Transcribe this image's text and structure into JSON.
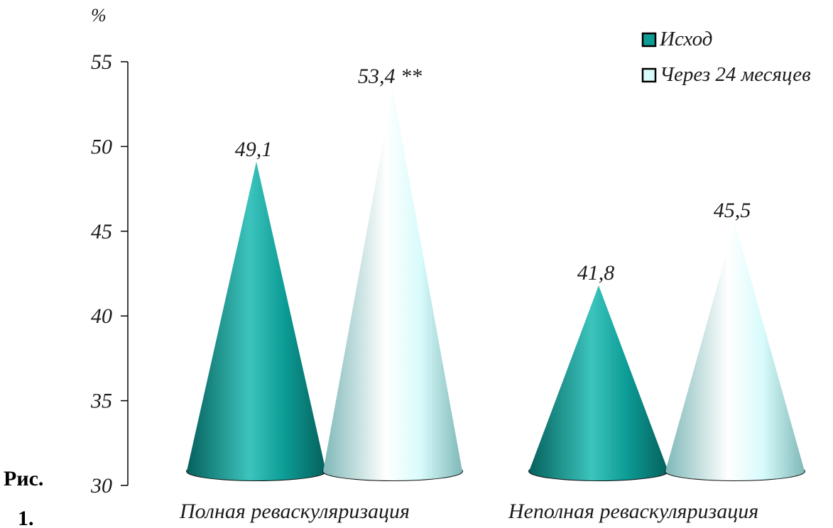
{
  "caption": {
    "line1": "Рис.",
    "line2": "1."
  },
  "colors": {
    "series_0": "#0d9c96",
    "series_0_dark": "#05605c",
    "series_0_light": "#3cc4bd",
    "series_1": "#d8fbfb",
    "series_1_dark": "#7fb8b8",
    "series_1_light": "#ffffff",
    "axis": "#000000"
  },
  "chart_data": {
    "type": "bar",
    "bar_shape": "cone",
    "unit_label": "%",
    "categories": [
      "Полная реваскуляризация",
      "Неполная реваскуляризация"
    ],
    "series": [
      {
        "name": "Исход",
        "values": [
          49.1,
          41.8
        ],
        "labels": [
          "49,1",
          "41,8"
        ]
      },
      {
        "name": "Через 24 месяцев",
        "values": [
          53.4,
          45.5
        ],
        "labels": [
          "53,4 **",
          "45,5"
        ]
      }
    ],
    "ylim": [
      30,
      55
    ],
    "yticks": [
      "30",
      "35",
      "40",
      "45",
      "50",
      "55"
    ],
    "grid": false,
    "legend_position": "top-right"
  }
}
